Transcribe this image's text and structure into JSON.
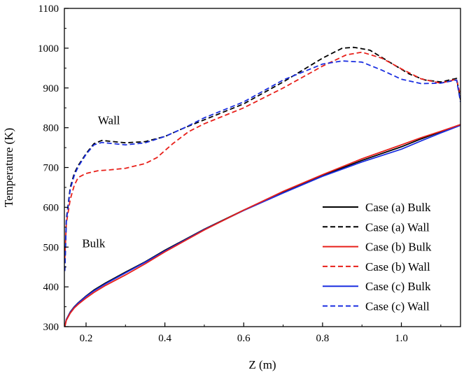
{
  "chart_data": {
    "type": "line",
    "title": "",
    "xlabel": "Z (m)",
    "ylabel": "Temperature (K)",
    "xlim": [
      0.145,
      1.15
    ],
    "ylim": [
      300,
      1100
    ],
    "xticks": [
      0.2,
      0.4,
      0.6,
      0.8,
      1.0
    ],
    "xtick_labels": [
      "0.2",
      "0.4",
      "0.6",
      "0.8",
      "1.0"
    ],
    "yticks": [
      300,
      400,
      500,
      600,
      700,
      800,
      900,
      1000,
      1100
    ],
    "ytick_labels": [
      "300",
      "400",
      "500",
      "600",
      "700",
      "800",
      "900",
      "1000",
      "1100"
    ],
    "grid": false,
    "legend_position": "bottom-right",
    "annotations": [
      {
        "text": "Wall",
        "x": 0.23,
        "y": 820
      },
      {
        "text": "Bulk",
        "x": 0.19,
        "y": 510
      }
    ],
    "series": [
      {
        "name": "Case (a) Bulk",
        "color": "#000000",
        "dash": "solid",
        "x": [
          0.146,
          0.15,
          0.16,
          0.17,
          0.18,
          0.2,
          0.22,
          0.25,
          0.3,
          0.35,
          0.4,
          0.5,
          0.6,
          0.7,
          0.8,
          0.9,
          1.0,
          1.05,
          1.1,
          1.15
        ],
        "y": [
          300,
          318,
          337,
          350,
          360,
          377,
          392,
          410,
          437,
          463,
          492,
          545,
          593,
          638,
          680,
          718,
          752,
          772,
          790,
          808
        ]
      },
      {
        "name": "Case (a) Wall",
        "color": "#000000",
        "dash": "dashed",
        "x": [
          0.146,
          0.15,
          0.16,
          0.17,
          0.18,
          0.2,
          0.22,
          0.24,
          0.27,
          0.3,
          0.35,
          0.4,
          0.45,
          0.5,
          0.6,
          0.7,
          0.8,
          0.85,
          0.88,
          0.92,
          0.97,
          1.02,
          1.06,
          1.1,
          1.14,
          1.15
        ],
        "y": [
          440,
          570,
          650,
          685,
          705,
          735,
          760,
          768,
          765,
          762,
          765,
          778,
          800,
          820,
          860,
          915,
          975,
          1000,
          1002,
          995,
          965,
          935,
          920,
          915,
          924,
          870
        ]
      },
      {
        "name": "Case (b) Bulk",
        "color": "#e8201a",
        "dash": "solid",
        "x": [
          0.146,
          0.15,
          0.16,
          0.17,
          0.18,
          0.2,
          0.22,
          0.25,
          0.3,
          0.35,
          0.4,
          0.5,
          0.6,
          0.7,
          0.8,
          0.9,
          1.0,
          1.05,
          1.1,
          1.15
        ],
        "y": [
          300,
          316,
          334,
          347,
          356,
          372,
          386,
          404,
          430,
          458,
          488,
          543,
          593,
          640,
          682,
          722,
          757,
          775,
          791,
          808
        ]
      },
      {
        "name": "Case (b) Wall",
        "color": "#e8201a",
        "dash": "dashed",
        "x": [
          0.146,
          0.15,
          0.16,
          0.17,
          0.18,
          0.2,
          0.23,
          0.26,
          0.3,
          0.35,
          0.38,
          0.42,
          0.46,
          0.5,
          0.6,
          0.7,
          0.8,
          0.86,
          0.9,
          0.95,
          1.0,
          1.05,
          1.1,
          1.14,
          1.15
        ],
        "y": [
          470,
          560,
          620,
          655,
          675,
          685,
          692,
          694,
          698,
          710,
          725,
          760,
          790,
          810,
          850,
          900,
          955,
          983,
          990,
          975,
          948,
          923,
          912,
          922,
          880
        ]
      },
      {
        "name": "Case (c) Bulk",
        "color": "#1a2ee0",
        "dash": "solid",
        "x": [
          0.146,
          0.15,
          0.16,
          0.17,
          0.18,
          0.2,
          0.22,
          0.25,
          0.3,
          0.35,
          0.4,
          0.5,
          0.6,
          0.7,
          0.8,
          0.9,
          1.0,
          1.05,
          1.1,
          1.15
        ],
        "y": [
          300,
          318,
          336,
          349,
          359,
          376,
          390,
          408,
          435,
          462,
          490,
          544,
          592,
          636,
          678,
          714,
          746,
          767,
          787,
          806
        ]
      },
      {
        "name": "Case (c) Wall",
        "color": "#1a2ee0",
        "dash": "dashed",
        "x": [
          0.146,
          0.15,
          0.16,
          0.17,
          0.18,
          0.2,
          0.22,
          0.24,
          0.27,
          0.3,
          0.35,
          0.4,
          0.45,
          0.5,
          0.6,
          0.7,
          0.8,
          0.85,
          0.9,
          0.95,
          1.0,
          1.05,
          1.1,
          1.14,
          1.15
        ],
        "y": [
          440,
          565,
          645,
          680,
          702,
          733,
          757,
          763,
          760,
          757,
          762,
          778,
          800,
          825,
          865,
          920,
          960,
          968,
          965,
          945,
          922,
          911,
          912,
          920,
          865
        ]
      }
    ]
  }
}
